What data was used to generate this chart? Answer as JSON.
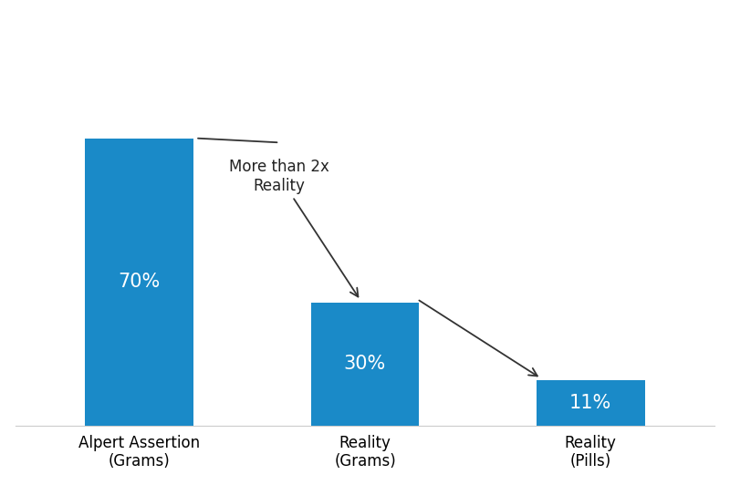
{
  "categories": [
    "Alpert Assertion\n(Grams)",
    "Reality\n(Grams)",
    "Reality\n(Pills)"
  ],
  "values": [
    70,
    30,
    11
  ],
  "labels": [
    "70%",
    "30%",
    "11%"
  ],
  "bar_color": "#1a8ac8",
  "background_color": "#ffffff",
  "annotation_text": "More than 2x\nReality",
  "ylim": [
    0,
    100
  ],
  "bar_width": 0.48,
  "figsize": [
    8.0,
    5.32
  ],
  "dpi": 100
}
